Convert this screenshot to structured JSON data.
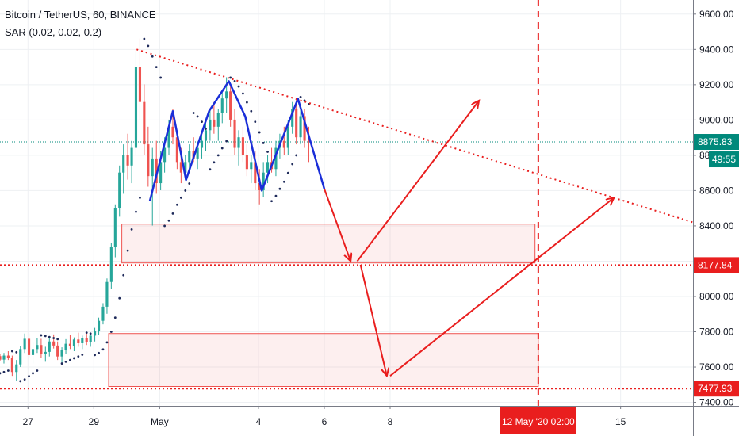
{
  "legend": {
    "symbol_line": "Bitcoin / TetherUS, 60, BINANCE",
    "indicator_line": "SAR (0.02, 0.02, 0.2)"
  },
  "chart_data": {
    "type": "candlestick",
    "symbol": "Bitcoin / TetherUS",
    "interval": "60",
    "exchange": "BINANCE",
    "indicator": "SAR (0.02, 0.02, 0.2)",
    "ylim": [
      7380,
      9680
    ],
    "y_ticks": [
      7400,
      7600,
      7800,
      8000,
      8200,
      8400,
      8600,
      8800,
      9000,
      9200,
      9400,
      9600
    ],
    "y_tick_labels": [
      "7400.00",
      "7600.00",
      "7800.00",
      "8000.00",
      "8200.00",
      "8400.00",
      "8600.00",
      "8800.00",
      "9000.00",
      "9200.00",
      "9400.00",
      "9600.00"
    ],
    "x_ticks": [
      {
        "day": 0,
        "label": "27"
      },
      {
        "day": 2,
        "label": "29"
      },
      {
        "day": 4,
        "label": "May"
      },
      {
        "day": 7,
        "label": "4"
      },
      {
        "day": 9,
        "label": "6"
      },
      {
        "day": 11,
        "label": "8"
      },
      {
        "day": 18,
        "label": "15"
      }
    ],
    "x_range_days": [
      -0.85,
      20.2
    ],
    "last_price": {
      "value": 8875.83,
      "label": "8875.83",
      "countdown": "49:55",
      "color": "#00897b"
    },
    "levels": [
      {
        "value": 8177.84,
        "label": "8177.84",
        "color": "#e91e1e"
      },
      {
        "value": 7477.93,
        "label": "7477.93",
        "color": "#e91e1e"
      }
    ],
    "vertical_marker": {
      "day": 15.5,
      "label": "12 May '20  02:00",
      "color": "#e91e1e"
    },
    "zones": [
      {
        "day_from": 2.85,
        "day_to": 15.4,
        "price_from": 8190,
        "price_to": 8410
      },
      {
        "day_from": 2.45,
        "day_to": 15.5,
        "price_from": 7490,
        "price_to": 7790
      }
    ],
    "trendline": {
      "points": [
        [
          3.3,
          9400
        ],
        [
          20.2,
          8420
        ]
      ],
      "color": "#e91e1e",
      "style": "dotted"
    },
    "pattern_line": {
      "color": "#1a2ed8",
      "points": [
        [
          3.7,
          8540
        ],
        [
          4.4,
          9050
        ],
        [
          4.8,
          8660
        ],
        [
          5.5,
          9050
        ],
        [
          6.1,
          9220
        ],
        [
          6.6,
          9020
        ],
        [
          7.1,
          8600
        ],
        [
          8.2,
          9120
        ],
        [
          9.0,
          8610
        ]
      ]
    },
    "arrows": [
      {
        "points": [
          [
            9.0,
            8610
          ],
          [
            9.8,
            8200
          ]
        ]
      },
      {
        "points": [
          [
            10.0,
            8200
          ],
          [
            13.7,
            9110
          ]
        ]
      },
      {
        "points": [
          [
            10.1,
            8180
          ],
          [
            10.9,
            7550
          ]
        ]
      },
      {
        "points": [
          [
            11.0,
            7550
          ],
          [
            17.8,
            8560
          ]
        ]
      }
    ],
    "candles": [
      {
        "day": -0.85,
        "o": 7662,
        "h": 7675,
        "l": 7632,
        "c": 7642
      },
      {
        "day": -0.73,
        "o": 7642,
        "h": 7680,
        "l": 7620,
        "c": 7665
      },
      {
        "day": -0.6,
        "o": 7665,
        "h": 7690,
        "l": 7640,
        "c": 7650
      },
      {
        "day": -0.48,
        "o": 7650,
        "h": 7665,
        "l": 7550,
        "c": 7572
      },
      {
        "day": -0.35,
        "o": 7572,
        "h": 7640,
        "l": 7520,
        "c": 7615
      },
      {
        "day": -0.23,
        "o": 7615,
        "h": 7720,
        "l": 7600,
        "c": 7702
      },
      {
        "day": -0.1,
        "o": 7702,
        "h": 7790,
        "l": 7680,
        "c": 7760
      },
      {
        "day": 0.03,
        "o": 7760,
        "h": 7790,
        "l": 7655,
        "c": 7668
      },
      {
        "day": 0.15,
        "o": 7668,
        "h": 7740,
        "l": 7620,
        "c": 7702
      },
      {
        "day": 0.28,
        "o": 7702,
        "h": 7762,
        "l": 7680,
        "c": 7725
      },
      {
        "day": 0.4,
        "o": 7725,
        "h": 7760,
        "l": 7650,
        "c": 7672
      },
      {
        "day": 0.53,
        "o": 7672,
        "h": 7715,
        "l": 7630,
        "c": 7686
      },
      {
        "day": 0.65,
        "o": 7686,
        "h": 7768,
        "l": 7660,
        "c": 7745
      },
      {
        "day": 0.78,
        "o": 7745,
        "h": 7785,
        "l": 7705,
        "c": 7722
      },
      {
        "day": 0.9,
        "o": 7722,
        "h": 7745,
        "l": 7640,
        "c": 7660
      },
      {
        "day": 1.03,
        "o": 7660,
        "h": 7712,
        "l": 7625,
        "c": 7698
      },
      {
        "day": 1.15,
        "o": 7698,
        "h": 7758,
        "l": 7672,
        "c": 7732
      },
      {
        "day": 1.28,
        "o": 7732,
        "h": 7782,
        "l": 7702,
        "c": 7718
      },
      {
        "day": 1.4,
        "o": 7718,
        "h": 7768,
        "l": 7690,
        "c": 7756
      },
      {
        "day": 1.53,
        "o": 7756,
        "h": 7795,
        "l": 7715,
        "c": 7735
      },
      {
        "day": 1.65,
        "o": 7735,
        "h": 7778,
        "l": 7702,
        "c": 7765
      },
      {
        "day": 1.78,
        "o": 7765,
        "h": 7800,
        "l": 7725,
        "c": 7742
      },
      {
        "day": 1.9,
        "o": 7742,
        "h": 7790,
        "l": 7715,
        "c": 7778
      },
      {
        "day": 2.03,
        "o": 7778,
        "h": 7822,
        "l": 7745,
        "c": 7802
      },
      {
        "day": 2.15,
        "o": 7802,
        "h": 7880,
        "l": 7782,
        "c": 7862
      },
      {
        "day": 2.28,
        "o": 7862,
        "h": 7962,
        "l": 7842,
        "c": 7942
      },
      {
        "day": 2.4,
        "o": 7942,
        "h": 8102,
        "l": 7902,
        "c": 8082
      },
      {
        "day": 2.53,
        "o": 8082,
        "h": 8302,
        "l": 8042,
        "c": 8282
      },
      {
        "day": 2.65,
        "o": 8282,
        "h": 8522,
        "l": 8222,
        "c": 8502
      },
      {
        "day": 2.78,
        "o": 8502,
        "h": 8742,
        "l": 8452,
        "c": 8702
      },
      {
        "day": 2.9,
        "o": 8702,
        "h": 8862,
        "l": 8582,
        "c": 8802
      },
      {
        "day": 3.03,
        "o": 8802,
        "h": 8922,
        "l": 8662,
        "c": 8742
      },
      {
        "day": 3.15,
        "o": 8742,
        "h": 8882,
        "l": 8642,
        "c": 8842
      },
      {
        "day": 3.28,
        "o": 8842,
        "h": 9402,
        "l": 8802,
        "c": 9302
      },
      {
        "day": 3.4,
        "o": 9302,
        "h": 9462,
        "l": 9002,
        "c": 9102
      },
      {
        "day": 3.53,
        "o": 9102,
        "h": 9202,
        "l": 8802,
        "c": 8862
      },
      {
        "day": 3.65,
        "o": 8862,
        "h": 8962,
        "l": 8622,
        "c": 8682
      },
      {
        "day": 3.78,
        "o": 8682,
        "h": 8842,
        "l": 8402,
        "c": 8782
      },
      {
        "day": 3.9,
        "o": 8782,
        "h": 8882,
        "l": 8582,
        "c": 8642
      },
      {
        "day": 4.03,
        "o": 8642,
        "h": 8822,
        "l": 8602,
        "c": 8762
      },
      {
        "day": 4.15,
        "o": 8762,
        "h": 8902,
        "l": 8702,
        "c": 8842
      },
      {
        "day": 4.28,
        "o": 8842,
        "h": 9002,
        "l": 8802,
        "c": 8962
      },
      {
        "day": 4.4,
        "o": 8962,
        "h": 9062,
        "l": 8862,
        "c": 8902
      },
      {
        "day": 4.53,
        "o": 8902,
        "h": 8942,
        "l": 8722,
        "c": 8762
      },
      {
        "day": 4.65,
        "o": 8762,
        "h": 8842,
        "l": 8642,
        "c": 8702
      },
      {
        "day": 4.78,
        "o": 8702,
        "h": 8802,
        "l": 8662,
        "c": 8762
      },
      {
        "day": 4.9,
        "o": 8762,
        "h": 8862,
        "l": 8702,
        "c": 8822
      },
      {
        "day": 5.03,
        "o": 8822,
        "h": 8902,
        "l": 8762,
        "c": 8782
      },
      {
        "day": 5.15,
        "o": 8782,
        "h": 8862,
        "l": 8722,
        "c": 8842
      },
      {
        "day": 5.28,
        "o": 8842,
        "h": 8922,
        "l": 8782,
        "c": 8882
      },
      {
        "day": 5.4,
        "o": 8882,
        "h": 8982,
        "l": 8822,
        "c": 8942
      },
      {
        "day": 5.53,
        "o": 8942,
        "h": 9062,
        "l": 8882,
        "c": 9002
      },
      {
        "day": 5.65,
        "o": 9002,
        "h": 9102,
        "l": 8922,
        "c": 8962
      },
      {
        "day": 5.78,
        "o": 8962,
        "h": 9062,
        "l": 8882,
        "c": 9042
      },
      {
        "day": 5.9,
        "o": 9042,
        "h": 9162,
        "l": 8982,
        "c": 9122
      },
      {
        "day": 6.03,
        "o": 9122,
        "h": 9242,
        "l": 9042,
        "c": 9162
      },
      {
        "day": 6.15,
        "o": 9162,
        "h": 9202,
        "l": 8962,
        "c": 9002
      },
      {
        "day": 6.28,
        "o": 9002,
        "h": 9062,
        "l": 8802,
        "c": 8842
      },
      {
        "day": 6.4,
        "o": 8842,
        "h": 8942,
        "l": 8742,
        "c": 8902
      },
      {
        "day": 6.53,
        "o": 8902,
        "h": 8962,
        "l": 8762,
        "c": 8802
      },
      {
        "day": 6.65,
        "o": 8802,
        "h": 8862,
        "l": 8682,
        "c": 8722
      },
      {
        "day": 6.78,
        "o": 8722,
        "h": 8802,
        "l": 8642,
        "c": 8762
      },
      {
        "day": 6.9,
        "o": 8762,
        "h": 8822,
        "l": 8602,
        "c": 8642
      },
      {
        "day": 7.03,
        "o": 8642,
        "h": 8722,
        "l": 8522,
        "c": 8602
      },
      {
        "day": 7.15,
        "o": 8602,
        "h": 8762,
        "l": 8562,
        "c": 8702
      },
      {
        "day": 7.28,
        "o": 8702,
        "h": 8802,
        "l": 8642,
        "c": 8762
      },
      {
        "day": 7.4,
        "o": 8762,
        "h": 8842,
        "l": 8702,
        "c": 8722
      },
      {
        "day": 7.53,
        "o": 8722,
        "h": 8882,
        "l": 8682,
        "c": 8842
      },
      {
        "day": 7.65,
        "o": 8842,
        "h": 8922,
        "l": 8782,
        "c": 8882
      },
      {
        "day": 7.78,
        "o": 8882,
        "h": 8962,
        "l": 8802,
        "c": 8842
      },
      {
        "day": 7.9,
        "o": 8842,
        "h": 9002,
        "l": 8802,
        "c": 8962
      },
      {
        "day": 8.03,
        "o": 8962,
        "h": 9102,
        "l": 8922,
        "c": 9062
      },
      {
        "day": 8.15,
        "o": 9062,
        "h": 9122,
        "l": 8862,
        "c": 8902
      },
      {
        "day": 8.28,
        "o": 8902,
        "h": 9082,
        "l": 8862,
        "c": 9022
      },
      {
        "day": 8.4,
        "o": 9022,
        "h": 9062,
        "l": 8842,
        "c": 8882
      },
      {
        "day": 8.53,
        "o": 8882,
        "h": 8962,
        "l": 8762,
        "c": 8876
      }
    ],
    "sar": [
      {
        "day": -0.85,
        "v": 7565
      },
      {
        "day": -0.73,
        "v": 7572
      },
      {
        "day": -0.6,
        "v": 7580
      },
      {
        "day": -0.48,
        "v": 7690
      },
      {
        "day": -0.35,
        "v": 7684
      },
      {
        "day": -0.23,
        "v": 7520
      },
      {
        "day": -0.1,
        "v": 7530
      },
      {
        "day": 0.03,
        "v": 7548
      },
      {
        "day": 0.15,
        "v": 7565
      },
      {
        "day": 0.28,
        "v": 7580
      },
      {
        "day": 0.4,
        "v": 7780
      },
      {
        "day": 0.53,
        "v": 7776
      },
      {
        "day": 0.65,
        "v": 7770
      },
      {
        "day": 0.78,
        "v": 7764
      },
      {
        "day": 0.9,
        "v": 7758
      },
      {
        "day": 1.03,
        "v": 7620
      },
      {
        "day": 1.15,
        "v": 7630
      },
      {
        "day": 1.28,
        "v": 7640
      },
      {
        "day": 1.4,
        "v": 7650
      },
      {
        "day": 1.53,
        "v": 7660
      },
      {
        "day": 1.65,
        "v": 7670
      },
      {
        "day": 1.78,
        "v": 7795
      },
      {
        "day": 1.9,
        "v": 7790
      },
      {
        "day": 2.03,
        "v": 7668
      },
      {
        "day": 2.15,
        "v": 7680
      },
      {
        "day": 2.28,
        "v": 7700
      },
      {
        "day": 2.4,
        "v": 7740
      },
      {
        "day": 2.53,
        "v": 7800
      },
      {
        "day": 2.65,
        "v": 7880
      },
      {
        "day": 2.78,
        "v": 7990
      },
      {
        "day": 2.9,
        "v": 8120
      },
      {
        "day": 3.03,
        "v": 8260
      },
      {
        "day": 3.15,
        "v": 8380
      },
      {
        "day": 3.28,
        "v": 8480
      },
      {
        "day": 3.4,
        "v": 8560
      },
      {
        "day": 3.53,
        "v": 9460
      },
      {
        "day": 3.65,
        "v": 9420
      },
      {
        "day": 3.78,
        "v": 9360
      },
      {
        "day": 3.9,
        "v": 9300
      },
      {
        "day": 4.03,
        "v": 9240
      },
      {
        "day": 4.15,
        "v": 8400
      },
      {
        "day": 4.28,
        "v": 8430
      },
      {
        "day": 4.4,
        "v": 8470
      },
      {
        "day": 4.53,
        "v": 8520
      },
      {
        "day": 4.65,
        "v": 8560
      },
      {
        "day": 4.78,
        "v": 8600
      },
      {
        "day": 4.9,
        "v": 8640
      },
      {
        "day": 5.03,
        "v": 9040
      },
      {
        "day": 5.15,
        "v": 9020
      },
      {
        "day": 5.28,
        "v": 8990
      },
      {
        "day": 5.4,
        "v": 8950
      },
      {
        "day": 5.53,
        "v": 8720
      },
      {
        "day": 5.65,
        "v": 8760
      },
      {
        "day": 5.78,
        "v": 8800
      },
      {
        "day": 5.9,
        "v": 8840
      },
      {
        "day": 6.03,
        "v": 8880
      },
      {
        "day": 6.15,
        "v": 9240
      },
      {
        "day": 6.28,
        "v": 9220
      },
      {
        "day": 6.4,
        "v": 9190
      },
      {
        "day": 6.53,
        "v": 9150
      },
      {
        "day": 6.65,
        "v": 9100
      },
      {
        "day": 6.78,
        "v": 9050
      },
      {
        "day": 6.9,
        "v": 8990
      },
      {
        "day": 7.03,
        "v": 8930
      },
      {
        "day": 7.15,
        "v": 8870
      },
      {
        "day": 7.28,
        "v": 8820
      },
      {
        "day": 7.4,
        "v": 8540
      },
      {
        "day": 7.53,
        "v": 8570
      },
      {
        "day": 7.65,
        "v": 8610
      },
      {
        "day": 7.78,
        "v": 8650
      },
      {
        "day": 7.9,
        "v": 8700
      },
      {
        "day": 8.03,
        "v": 8750
      },
      {
        "day": 8.15,
        "v": 8800
      },
      {
        "day": 8.28,
        "v": 9130
      },
      {
        "day": 8.4,
        "v": 9110
      },
      {
        "day": 8.53,
        "v": 9090
      }
    ]
  }
}
